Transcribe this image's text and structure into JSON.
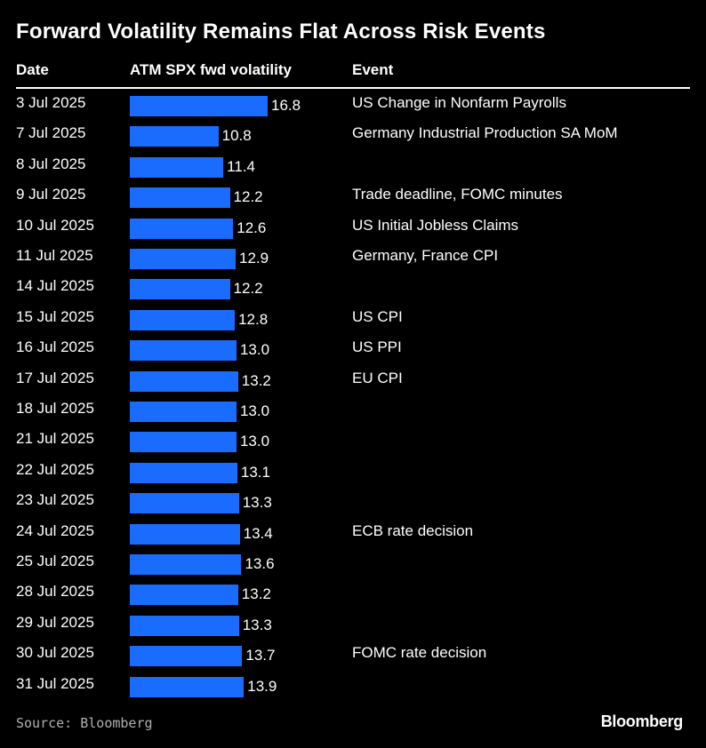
{
  "title": "Forward Volatility Remains Flat Across Risk Events",
  "headers": {
    "date": "Date",
    "volatility": "ATM SPX fwd volatility",
    "event": "Event"
  },
  "colors": {
    "background": "#000000",
    "bar": "#1a6cff",
    "text": "#ffffff",
    "source": "#b0b0b0"
  },
  "chart_data": {
    "type": "bar",
    "orientation": "horizontal",
    "title": "Forward Volatility Remains Flat Across Risk Events",
    "xlabel": "ATM SPX fwd volatility",
    "ylabel": "Date",
    "xlim": [
      0,
      16.8
    ],
    "categories": [
      "3 Jul 2025",
      "7 Jul 2025",
      "8 Jul 2025",
      "9 Jul 2025",
      "10 Jul 2025",
      "11 Jul 2025",
      "14 Jul 2025",
      "15 Jul 2025",
      "16 Jul 2025",
      "17 Jul 2025",
      "18 Jul 2025",
      "21 Jul 2025",
      "22 Jul 2025",
      "23 Jul 2025",
      "24 Jul 2025",
      "25 Jul 2025",
      "28 Jul 2025",
      "29 Jul 2025",
      "30 Jul 2025",
      "31 Jul 2025"
    ],
    "values": [
      16.8,
      10.8,
      11.4,
      12.2,
      12.6,
      12.9,
      12.2,
      12.8,
      13.0,
      13.2,
      13.0,
      13.0,
      13.1,
      13.3,
      13.4,
      13.6,
      13.2,
      13.3,
      13.7,
      13.9
    ],
    "labels": [
      "16.8",
      "10.8",
      "11.4",
      "12.2",
      "12.6",
      "12.9",
      "12.2",
      "12.8",
      "13.0",
      "13.2",
      "13.0",
      "13.0",
      "13.1",
      "13.3",
      "13.4",
      "13.6",
      "13.2",
      "13.3",
      "13.7",
      "13.9"
    ],
    "events": [
      "US Change in Nonfarm Payrolls",
      "Germany Industrial Production SA MoM",
      "",
      "Trade deadline, FOMC minutes",
      "US Initial Jobless Claims",
      "Germany, France CPI",
      "",
      "US CPI",
      "US PPI",
      "EU CPI",
      "",
      "",
      "",
      "",
      "ECB rate decision",
      "",
      "",
      "",
      "FOMC rate decision",
      ""
    ]
  },
  "footer": {
    "source": "Source: Bloomberg",
    "brand": "Bloomberg"
  }
}
